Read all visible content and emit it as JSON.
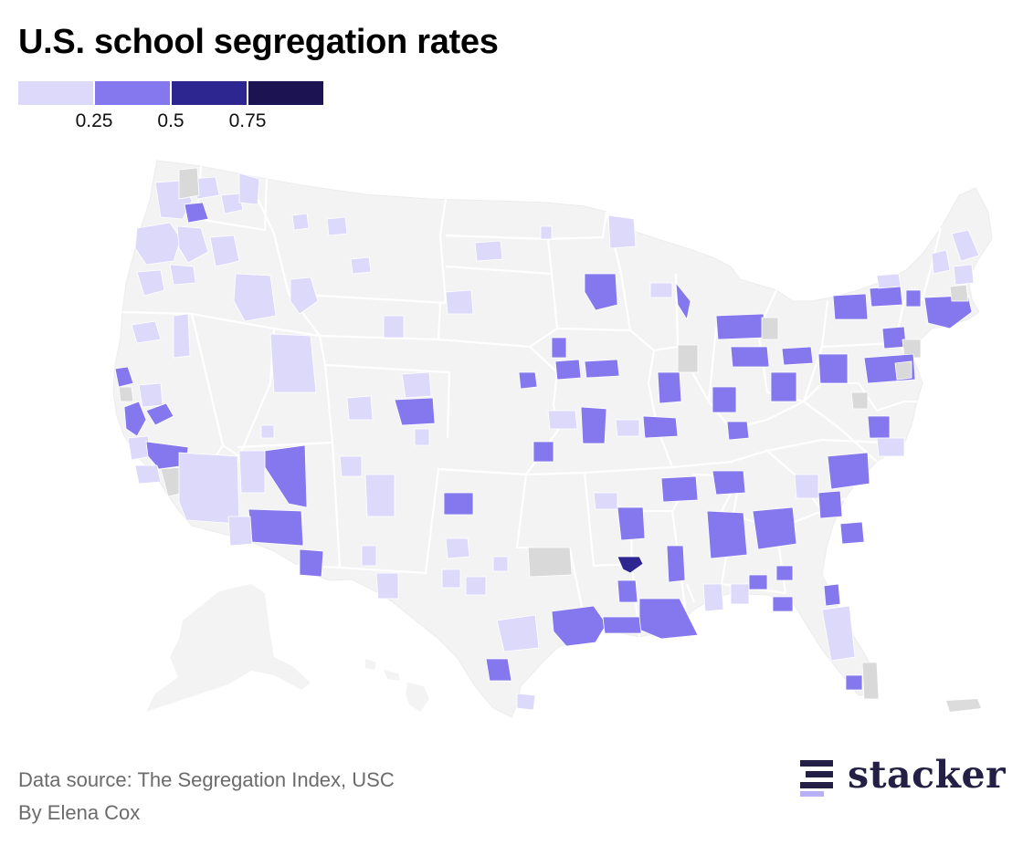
{
  "title": "U.S. school segregation rates",
  "legend": {
    "colors": [
      "#ddd9fb",
      "#8577ee",
      "#2d2690",
      "#1c1452"
    ],
    "tick_labels": [
      "0.25",
      "0.5",
      "0.75"
    ]
  },
  "map": {
    "no_data_color": "#d9d9d9",
    "base_color": "#f3f3f3",
    "border_color": "#ffffff"
  },
  "source": "Data source: The Segregation Index, USC",
  "byline": "By Elena Cox",
  "brand": {
    "name": "stacker",
    "color": "#231f45",
    "accent": "#b9b1f5"
  }
}
